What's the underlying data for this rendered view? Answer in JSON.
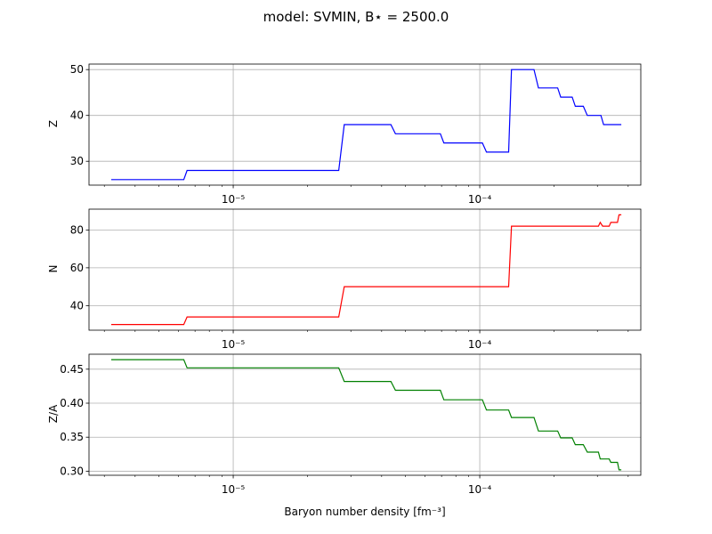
{
  "figure": {
    "title": "model: SVMIN, B⋆ = 2500.0",
    "xlabel": "Baryon number density [fm⁻³]"
  },
  "chart_data": [
    {
      "type": "line",
      "ylabel": "Z",
      "color": "#0000ff",
      "xscale": "log",
      "xlim": [
        2.6e-06,
        0.00045
      ],
      "ylim": [
        24.8,
        51.2
      ],
      "yticks": [
        30,
        40,
        50
      ],
      "ytick_labels": [
        "30",
        "40",
        "50"
      ],
      "xticks": [
        1e-05,
        0.0001
      ],
      "xtick_labels": [
        "10⁻⁵",
        "10⁻⁴"
      ],
      "grid": true,
      "series": [
        {
          "x": [
            3.2e-06,
            6.3e-06,
            6.5e-06,
            2.68e-05,
            2.82e-05,
            4.36e-05,
            4.55e-05,
            6.92e-05,
            7.15e-05,
            0.0001025,
            0.0001065,
            0.000131,
            0.0001345,
            0.000166,
            0.000173,
            0.000207,
            0.000213,
            0.000237,
            0.000244,
            0.000263,
            0.000273,
            0.00031,
            0.000318,
            0.000375
          ],
          "y": [
            26,
            26,
            28,
            28,
            38,
            38,
            36,
            36,
            34,
            34,
            32,
            32,
            50,
            50,
            46,
            46,
            44,
            44,
            42,
            42,
            40,
            40,
            38,
            38
          ]
        }
      ]
    },
    {
      "type": "line",
      "ylabel": "N",
      "color": "#ff0000",
      "xscale": "log",
      "xlim": [
        2.6e-06,
        0.00045
      ],
      "ylim": [
        27.0,
        91.0
      ],
      "yticks": [
        40,
        60,
        80
      ],
      "ytick_labels": [
        "40",
        "60",
        "80"
      ],
      "xticks": [
        1e-05,
        0.0001
      ],
      "xtick_labels": [
        "10⁻⁵",
        "10⁻⁴"
      ],
      "grid": true,
      "series": [
        {
          "x": [
            3.2e-06,
            6.3e-06,
            6.5e-06,
            2.68e-05,
            2.82e-05,
            0.000131,
            0.0001345,
            0.000303,
            0.000308,
            0.000315,
            0.000335,
            0.00034,
            0.000362,
            0.000367,
            0.000375
          ],
          "y": [
            30,
            30,
            34,
            34,
            50,
            50,
            82,
            82,
            84,
            82,
            82,
            84,
            84,
            88,
            88
          ]
        }
      ]
    },
    {
      "type": "line",
      "ylabel": "Z/A",
      "color": "#008000",
      "xscale": "log",
      "xlim": [
        2.6e-06,
        0.00045
      ],
      "ylim": [
        0.294,
        0.472
      ],
      "yticks": [
        0.3,
        0.35,
        0.4,
        0.45
      ],
      "ytick_labels": [
        "0.30",
        "0.35",
        "0.40",
        "0.45"
      ],
      "xticks": [
        1e-05,
        0.0001
      ],
      "xtick_labels": [
        "10⁻⁵",
        "10⁻⁴"
      ],
      "grid": true,
      "series": [
        {
          "x": [
            3.2e-06,
            6.3e-06,
            6.5e-06,
            2.68e-05,
            2.82e-05,
            4.36e-05,
            4.55e-05,
            6.92e-05,
            7.15e-05,
            0.0001025,
            0.0001065,
            0.000131,
            0.0001345,
            0.000166,
            0.000173,
            0.000207,
            0.000213,
            0.000237,
            0.000244,
            0.000263,
            0.000273,
            0.000303,
            0.000308,
            0.000318,
            0.000335,
            0.00034,
            0.000362,
            0.000367,
            0.000375
          ],
          "y": [
            0.464,
            0.464,
            0.452,
            0.452,
            0.432,
            0.432,
            0.419,
            0.419,
            0.405,
            0.405,
            0.39,
            0.39,
            0.379,
            0.379,
            0.359,
            0.359,
            0.349,
            0.349,
            0.339,
            0.339,
            0.328,
            0.328,
            0.318,
            0.318,
            0.318,
            0.313,
            0.313,
            0.302,
            0.302
          ]
        }
      ]
    }
  ]
}
